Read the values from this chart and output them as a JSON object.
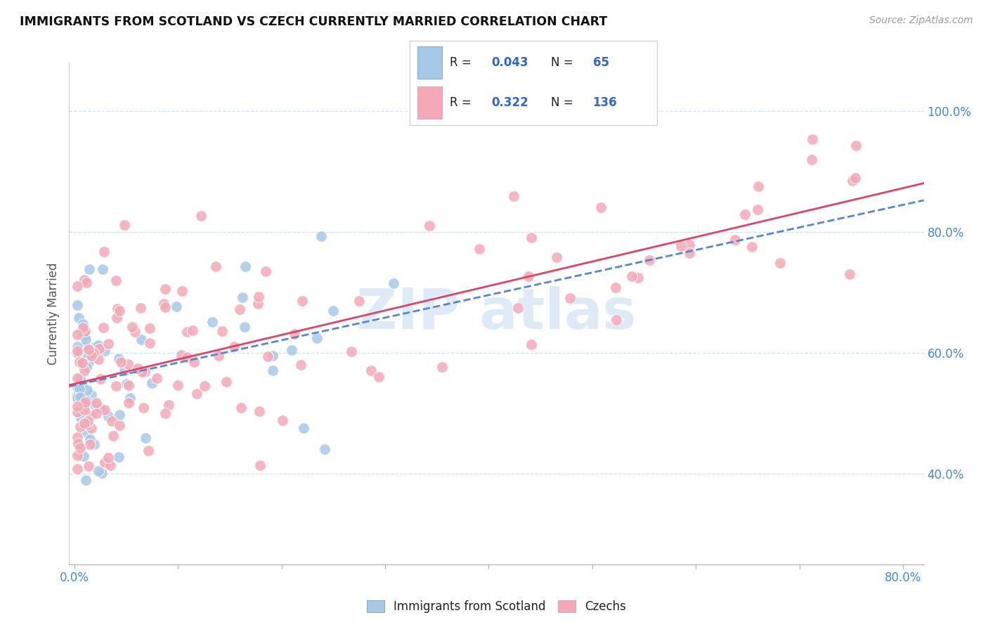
{
  "title": "IMMIGRANTS FROM SCOTLAND VS CZECH CURRENTLY MARRIED CORRELATION CHART",
  "source": "Source: ZipAtlas.com",
  "ylabel": "Currently Married",
  "scotland_R": 0.043,
  "scotland_N": 65,
  "czech_R": 0.322,
  "czech_N": 136,
  "scotland_color": "#a8c8e8",
  "czech_color": "#f4a8b8",
  "scotland_line_color": "#5588cc",
  "czech_line_color": "#dd4466",
  "watermark_color": "#c8ddf0",
  "y_ticks": [
    0.4,
    0.6,
    0.8,
    1.0
  ],
  "y_tick_labels": [
    "40.0%",
    "60.0%",
    "80.0%",
    "100.0%"
  ],
  "xlim": [
    -0.005,
    0.82
  ],
  "ylim": [
    0.25,
    1.08
  ]
}
